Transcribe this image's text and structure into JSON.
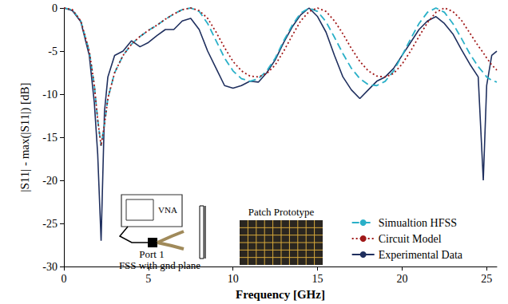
{
  "chart_data": {
    "type": "line",
    "x_label": "Frequency [GHz]",
    "y_label": "|S11| - max(|S11|) [dB]",
    "xlim": [
      0,
      25.6
    ],
    "xticks": [
      0,
      5,
      10,
      15,
      20,
      25
    ],
    "ylim": [
      -30,
      0
    ],
    "yticks": [
      -30,
      -25,
      -20,
      -15,
      -10,
      -5,
      0
    ],
    "grid": false,
    "legend": "lower right",
    "annotations": [
      "Patch Prototype",
      "VNA",
      "Port 1",
      "FSS with gnd plane"
    ],
    "x": [
      0,
      0.5,
      1,
      1.5,
      1.8,
      2,
      2.2,
      2.4,
      2.6,
      3,
      3.5,
      4,
      4.5,
      5,
      5.5,
      6,
      6.5,
      7,
      7.5,
      8,
      8.5,
      9,
      9.5,
      10,
      10.5,
      11,
      11.5,
      12,
      12.5,
      13,
      13.5,
      14,
      14.5,
      15,
      15.5,
      16,
      16.5,
      17,
      17.5,
      18,
      18.5,
      19,
      19.5,
      20,
      20.5,
      21,
      21.5,
      22,
      22.5,
      23,
      23.5,
      24,
      24.5,
      24.8,
      25,
      25.3,
      25.6
    ],
    "series": [
      {
        "name": "Simualtion HFSS",
        "color": "#2ab0c8",
        "line_style": "dashed",
        "values": [
          0,
          -0.2,
          -1.5,
          -5,
          -9,
          -13,
          -16,
          -13.5,
          -10.5,
          -7.5,
          -5.5,
          -4.2,
          -3.3,
          -2.6,
          -2,
          -1.3,
          -0.7,
          -0.2,
          0,
          -0.4,
          -1.8,
          -3.8,
          -5.8,
          -7.3,
          -8.2,
          -8.5,
          -8.2,
          -7.3,
          -5.8,
          -3.8,
          -2,
          -0.6,
          0,
          -0.4,
          -1.6,
          -3.4,
          -5.3,
          -7,
          -8.2,
          -8.9,
          -9,
          -8.5,
          -7.3,
          -5.5,
          -3.6,
          -1.8,
          -0.5,
          0,
          -0.5,
          -1.8,
          -3.5,
          -5.3,
          -6.8,
          -7.5,
          -8,
          -8.4,
          -8.6
        ]
      },
      {
        "name": "Circuit Model",
        "color": "#a01818",
        "line_style": "dotted",
        "values": [
          0,
          -0.2,
          -1.5,
          -5,
          -9,
          -13,
          -16,
          -13.5,
          -10.5,
          -7.5,
          -5.5,
          -4.2,
          -3.3,
          -2.6,
          -2,
          -1.3,
          -0.7,
          -0.2,
          0,
          -0.3,
          -1.2,
          -2.8,
          -4.6,
          -6.2,
          -7.3,
          -7.9,
          -8,
          -7.6,
          -6.6,
          -5,
          -3.2,
          -1.5,
          -0.4,
          0,
          -0.4,
          -1.5,
          -3,
          -4.7,
          -6.2,
          -7.3,
          -7.9,
          -8,
          -7.6,
          -6.5,
          -5,
          -3.3,
          -1.7,
          -0.5,
          0,
          -0.4,
          -1.4,
          -2.9,
          -4.4,
          -5.2,
          -5.8,
          -6.6,
          -7.2
        ]
      },
      {
        "name": "Experimental Data",
        "color": "#1f2f5e",
        "line_style": "solid",
        "values": [
          0,
          -0.3,
          -1.6,
          -5.5,
          -11,
          -17,
          -27,
          -12,
          -8,
          -5.5,
          -5,
          -3.8,
          -4.5,
          -4,
          -3.2,
          -2.5,
          -2.5,
          -1.5,
          -1.2,
          -2.5,
          -5,
          -7,
          -9,
          -9.3,
          -9,
          -8.5,
          -8.6,
          -7.5,
          -6,
          -4,
          -2.2,
          -0.8,
          0,
          -1,
          -2.8,
          -5.5,
          -8,
          -9.5,
          -10.5,
          -9.5,
          -8.5,
          -8,
          -7,
          -5.5,
          -4,
          -2.5,
          -1.5,
          -1,
          -1.8,
          -3,
          -4.8,
          -6.5,
          -8,
          -20,
          -9,
          -5.5,
          -5
        ]
      }
    ]
  }
}
